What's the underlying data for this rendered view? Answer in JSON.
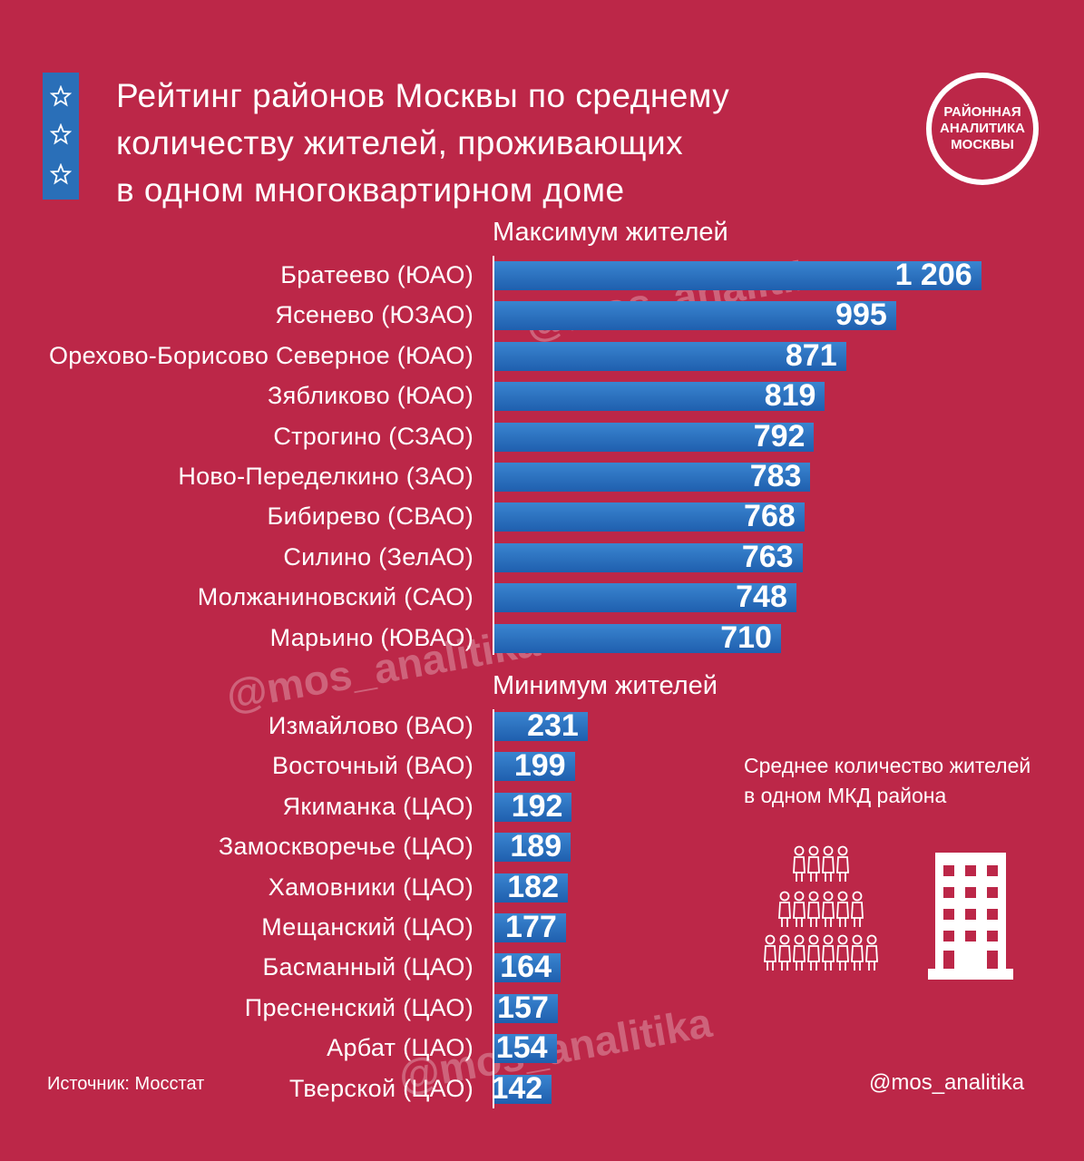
{
  "title_lines": [
    "Рейтинг районов Москвы по среднему",
    "количеству жителей, проживающих",
    "в одном многоквартирном доме"
  ],
  "logo_lines": [
    "РАЙОННАЯ",
    "АНАЛИТИКА",
    "МОСКВЫ"
  ],
  "legend_lines": [
    "Среднее количество жителей",
    "в одном МКД района"
  ],
  "source": "Источник: Мосстат",
  "handle": "@mos_analitika",
  "watermark": "@mos_analitika",
  "colors": {
    "background": "#bc2748",
    "bar": "#2a6fb8",
    "text": "#ffffff"
  },
  "chart_data": [
    {
      "type": "bar",
      "title": "Максимум жителей",
      "categories": [
        "Братеево (ЮАО)",
        "Ясенево (ЮЗАО)",
        "Орехово-Борисово Северное (ЮАО)",
        "Зябликово (ЮАО)",
        "Строгино (СЗАО)",
        "Ново-Переделкино (ЗАО)",
        "Бибирево (СВАО)",
        "Силино (ЗелАО)",
        "Молжаниновский (САО)",
        "Марьино (ЮВАО)"
      ],
      "values": [
        1206,
        995,
        871,
        819,
        792,
        783,
        768,
        763,
        748,
        710
      ],
      "value_labels": [
        "1 206",
        "995",
        "871",
        "819",
        "792",
        "783",
        "768",
        "763",
        "748",
        "710"
      ],
      "orientation": "horizontal"
    },
    {
      "type": "bar",
      "title": "Минимум жителей",
      "categories": [
        "Измайлово (ВАО)",
        "Восточный (ВАО)",
        "Якиманка (ЦАО)",
        "Замоскворечье (ЦАО)",
        "Хамовники (ЦАО)",
        "Мещанский (ЦАО)",
        "Басманный (ЦАО)",
        "Пресненский (ЦАО)",
        "Арбат (ЦАО)",
        "Тверской (ЦАО)"
      ],
      "values": [
        231,
        199,
        192,
        189,
        182,
        177,
        164,
        157,
        154,
        142
      ],
      "value_labels": [
        "231",
        "199",
        "192",
        "189",
        "182",
        "177",
        "164",
        "157",
        "154",
        "142"
      ],
      "orientation": "horizontal"
    }
  ]
}
